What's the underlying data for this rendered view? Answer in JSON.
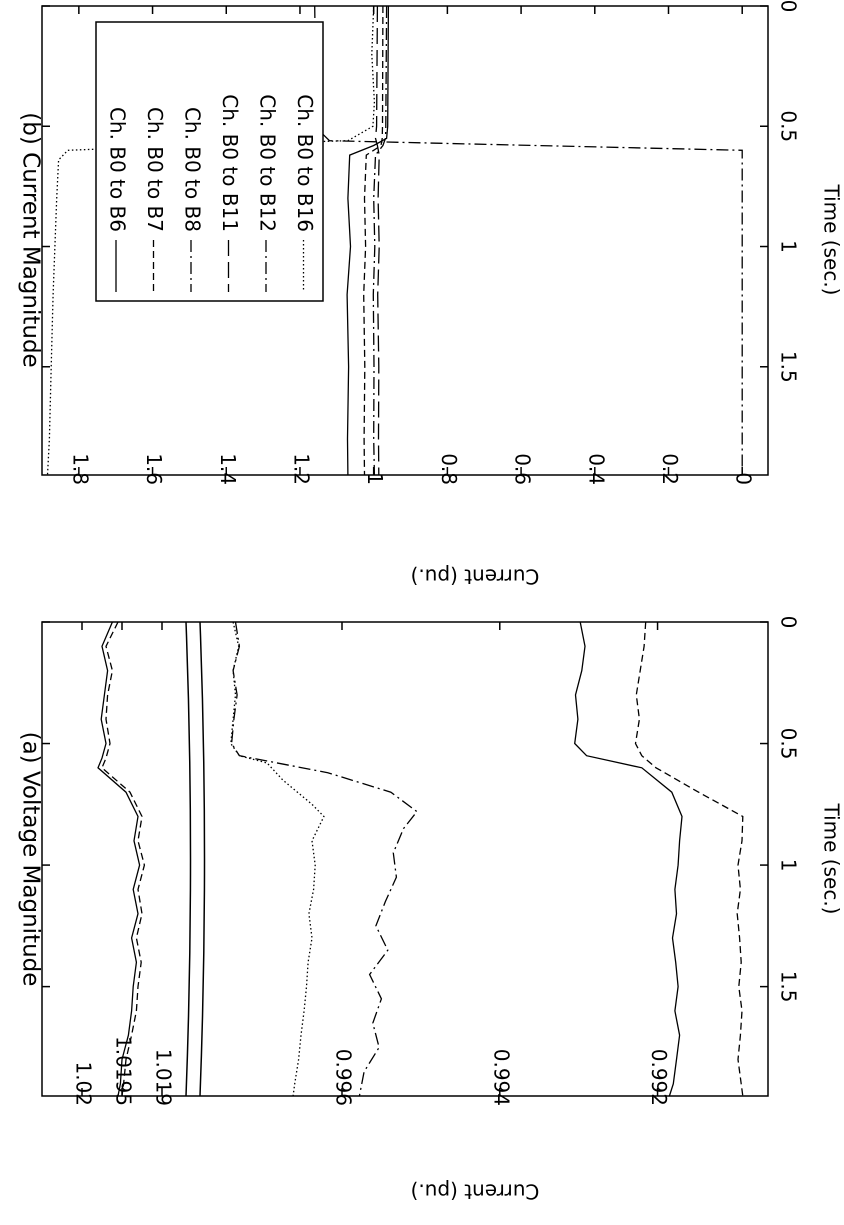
{
  "chart_data": [
    {
      "type": "line",
      "title": "(a) Voltage Magnitude",
      "xlabel": "Time (sec.)",
      "ylabel": "Current (pu.)",
      "xlim": [
        0,
        1.95
      ],
      "x_ticks": [
        "0",
        "0.5",
        "1",
        "1.5"
      ],
      "x_tick_values": [
        0,
        0.5,
        1,
        1.5
      ],
      "broken_axis": true,
      "upper_panel": {
        "ylim": [
          1.0187,
          1.0205
        ],
        "y_ticks": [
          "1.02",
          "1.0195",
          "1.019"
        ],
        "y_tick_values": [
          1.02,
          1.0195,
          1.019
        ]
      },
      "lower_panel": {
        "ylim": [
          0.9906,
          0.9978
        ],
        "y_ticks": [
          "0.996",
          "0.994",
          "0.992"
        ],
        "y_tick_values": [
          0.996,
          0.994,
          0.992
        ]
      },
      "grid": false,
      "series": [
        {
          "style": "solid",
          "panel": "upper",
          "x": [
            0,
            0.1,
            0.2,
            0.3,
            0.4,
            0.5,
            0.56,
            0.6,
            0.7,
            0.8,
            0.9,
            1.0,
            1.1,
            1.2,
            1.3,
            1.4,
            1.5,
            1.6,
            1.7,
            1.8,
            1.9,
            1.95
          ],
          "values": [
            1.01962,
            1.01975,
            1.01968,
            1.01972,
            1.01976,
            1.0197,
            1.01975,
            1.0198,
            1.01945,
            1.0193,
            1.01935,
            1.01928,
            1.01936,
            1.0193,
            1.01938,
            1.01932,
            1.01936,
            1.01938,
            1.01942,
            1.0195,
            1.01952,
            1.01955
          ]
        },
        {
          "style": "dashed",
          "panel": "upper",
          "x": [
            0,
            0.1,
            0.2,
            0.3,
            0.4,
            0.5,
            0.56,
            0.6,
            0.7,
            0.8,
            0.9,
            1.0,
            1.1,
            1.2,
            1.3,
            1.4,
            1.5,
            1.6,
            1.7,
            1.8,
            1.9,
            1.95
          ],
          "values": [
            1.01955,
            1.0197,
            1.01962,
            1.01968,
            1.0197,
            1.01965,
            1.0197,
            1.01975,
            1.0194,
            1.01925,
            1.0193,
            1.01922,
            1.0193,
            1.01925,
            1.01932,
            1.01926,
            1.0193,
            1.01932,
            1.01938,
            1.01945,
            1.01948,
            1.0195
          ]
        },
        {
          "style": "solid",
          "panel": "lower",
          "x": [
            0,
            0.1,
            0.2,
            0.3,
            0.4,
            0.5,
            0.55,
            0.6,
            0.7,
            0.8,
            0.9,
            1.0,
            1.1,
            1.2,
            1.3,
            1.4,
            1.5,
            1.6,
            1.7,
            1.8,
            1.9,
            1.95
          ],
          "values": [
            0.99298,
            0.99292,
            0.99296,
            0.99304,
            0.99301,
            0.99305,
            0.9929,
            0.9922,
            0.99182,
            0.99169,
            0.99172,
            0.99174,
            0.99178,
            0.99176,
            0.99181,
            0.99177,
            0.99174,
            0.99178,
            0.99172,
            0.99176,
            0.9918,
            0.99185
          ]
        },
        {
          "style": "dashed",
          "panel": "lower",
          "x": [
            0,
            0.1,
            0.2,
            0.3,
            0.4,
            0.5,
            0.55,
            0.6,
            0.7,
            0.8,
            0.9,
            1.0,
            1.1,
            1.2,
            1.3,
            1.4,
            1.5,
            1.6,
            1.7,
            1.8,
            1.9,
            1.95
          ],
          "values": [
            0.99215,
            0.99217,
            0.99222,
            0.99227,
            0.99223,
            0.99228,
            0.9922,
            0.99202,
            0.99148,
            0.99092,
            0.99093,
            0.99098,
            0.99095,
            0.99099,
            0.99096,
            0.99094,
            0.99097,
            0.99093,
            0.99095,
            0.99098,
            0.99094,
            0.99092
          ]
        },
        {
          "style": "dotted",
          "panel": "lower",
          "x": [
            0,
            0.1,
            0.2,
            0.3,
            0.4,
            0.5,
            0.55,
            0.58,
            0.65,
            0.75,
            0.8,
            0.9,
            1.0,
            1.1,
            1.2,
            1.3,
            1.4,
            1.5,
            1.6,
            1.7,
            1.8,
            1.9,
            1.95
          ],
          "values": [
            0.99738,
            0.99731,
            0.99738,
            0.99735,
            0.99738,
            0.99741,
            0.9973,
            0.99695,
            0.99675,
            0.99638,
            0.99623,
            0.99638,
            0.99634,
            0.99636,
            0.99642,
            0.99638,
            0.99643,
            0.99645,
            0.99648,
            0.99652,
            0.99655,
            0.9966,
            0.99662
          ]
        },
        {
          "style": "dash-dot",
          "panel": "lower",
          "x": [
            0,
            0.1,
            0.2,
            0.3,
            0.4,
            0.5,
            0.55,
            0.62,
            0.7,
            0.78,
            0.85,
            0.95,
            1.05,
            1.15,
            1.25,
            1.35,
            1.45,
            1.55,
            1.65,
            1.75,
            1.85,
            1.95
          ],
          "values": [
            0.99735,
            0.9973,
            0.99738,
            0.99733,
            0.99737,
            0.9974,
            0.9973,
            0.99618,
            0.99538,
            0.99505,
            0.99522,
            0.99535,
            0.99531,
            0.99545,
            0.99557,
            0.99542,
            0.99565,
            0.9955,
            0.99561,
            0.99553,
            0.99572,
            0.99578
          ]
        }
      ]
    },
    {
      "type": "line",
      "title": "(b) Current Magnitude",
      "xlabel": "Time (sec.)",
      "ylabel": "Current (pu.)",
      "xlim": [
        0,
        1.95
      ],
      "ylim": [
        -0.07,
        1.9
      ],
      "x_ticks": [
        "0",
        "0.5",
        "1",
        "1.5"
      ],
      "x_tick_values": [
        0,
        0.5,
        1,
        1.5
      ],
      "y_ticks": [
        "1.8",
        "1.6",
        "1.4",
        "1.2",
        "1",
        "0.8",
        "0.6",
        "0.4",
        "0.2",
        "0"
      ],
      "y_tick_values": [
        1.8,
        1.6,
        1.4,
        1.2,
        1.0,
        0.8,
        0.6,
        0.4,
        0.2,
        0.0
      ],
      "grid": false,
      "legend": "top-right",
      "series": [
        {
          "name": "Ch.   B0 to B6",
          "style": "solid",
          "x": [
            0,
            0.5,
            0.55,
            0.58,
            0.62,
            0.8,
            1.0,
            1.2,
            1.5,
            1.8,
            1.95
          ],
          "values": [
            0.96,
            0.962,
            0.965,
            1.0,
            1.065,
            1.07,
            1.063,
            1.072,
            1.068,
            1.071,
            1.07
          ]
        },
        {
          "name": "Ch.   B0 to B7",
          "style": "dashed",
          "x": [
            0,
            0.5,
            0.55,
            0.58,
            0.62,
            0.8,
            1.0,
            1.2,
            1.5,
            1.8,
            1.95
          ],
          "values": [
            0.975,
            0.976,
            0.977,
            0.98,
            1.02,
            1.025,
            1.022,
            1.027,
            1.024,
            1.026,
            1.025
          ]
        },
        {
          "name": "Ch.   B0 to B8",
          "style": "dash-dot",
          "x": [
            0,
            0.5,
            0.55,
            0.58,
            0.62,
            0.8,
            1.0,
            1.2,
            1.5,
            1.8,
            1.95
          ],
          "values": [
            0.965,
            0.967,
            0.968,
            0.975,
            0.995,
            1.0,
            0.997,
            1.001,
            0.999,
            1.0,
            0.998
          ]
        },
        {
          "name": "Ch.   B0 to B11",
          "style": "long-dash",
          "x": [
            0,
            0.5,
            0.55,
            0.58,
            0.62,
            0.8,
            1.0,
            1.2,
            1.5,
            1.8,
            1.95
          ],
          "values": [
            0.99,
            0.992,
            0.995,
            0.99,
            0.985,
            0.988,
            0.985,
            0.989,
            0.986,
            0.987,
            0.986
          ]
        },
        {
          "name": "Ch.   B0 to B12",
          "style": "dash-dot",
          "x": [
            0,
            0.2,
            0.4,
            0.5,
            0.56,
            0.6,
            0.6001,
            1.0,
            1.5,
            1.95
          ],
          "values": [
            1.16,
            1.158,
            1.162,
            1.16,
            1.12,
            0.0,
            0.0,
            0.0,
            0.0,
            0.0
          ]
        },
        {
          "name": "Ch.   B0 to B16",
          "style": "dotted",
          "x": [
            0,
            0.2,
            0.4,
            0.5,
            0.56,
            0.58,
            0.6,
            0.64,
            0.8,
            1.0,
            1.2,
            1.5,
            1.8,
            1.95
          ],
          "values": [
            1.0,
            1.005,
            0.998,
            1.002,
            1.07,
            1.5,
            1.83,
            1.855,
            1.86,
            1.865,
            1.87,
            1.875,
            1.88,
            1.885
          ]
        }
      ]
    }
  ]
}
